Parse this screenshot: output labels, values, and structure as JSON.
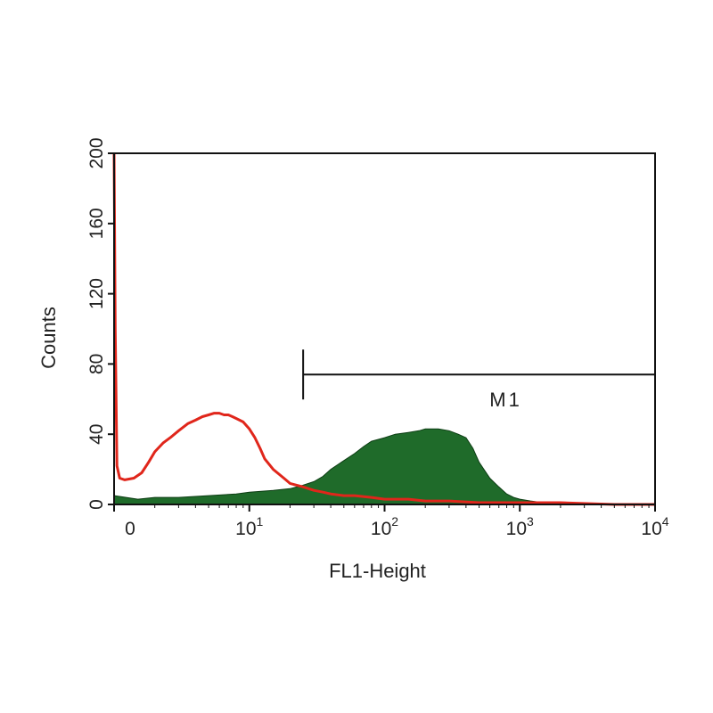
{
  "chart_data": {
    "type": "area",
    "xlabel": "FL1-Height",
    "ylabel": "Counts",
    "x_scale": "log",
    "xlim": [
      1,
      10000
    ],
    "ylim": [
      0,
      200
    ],
    "y_ticks": [
      "0",
      "40",
      "80",
      "120",
      "160",
      "200"
    ],
    "x_ticks": [
      {
        "base": "0",
        "exp": ""
      },
      {
        "base": "10",
        "exp": "1"
      },
      {
        "base": "10",
        "exp": "2"
      },
      {
        "base": "10",
        "exp": "3"
      },
      {
        "base": "10",
        "exp": "4"
      }
    ],
    "grid": false,
    "marker": {
      "label": "M1",
      "x_start": 25,
      "x_end": 10000,
      "y": 74
    },
    "series": [
      {
        "color": "#1f6b2a",
        "fill": true,
        "x": [
          1.0,
          1.5,
          2,
          3,
          5,
          8,
          10,
          15,
          20,
          25,
          30,
          35,
          40,
          50,
          60,
          70,
          80,
          100,
          120,
          150,
          180,
          200,
          250,
          300,
          350,
          400,
          450,
          500,
          600,
          700,
          800,
          900,
          1000,
          1200,
          1500,
          2000,
          3000,
          5000,
          10000
        ],
        "y": [
          5,
          3,
          4,
          4,
          5,
          6,
          7,
          8,
          9,
          11,
          13,
          16,
          20,
          25,
          29,
          33,
          36,
          38,
          40,
          41,
          42,
          43,
          43,
          42,
          40,
          38,
          32,
          24,
          15,
          10,
          6,
          4,
          3,
          2,
          1,
          1,
          0,
          0,
          0
        ]
      },
      {
        "color": "#e0261b",
        "fill": false,
        "x": [
          1.0,
          1.02,
          1.05,
          1.1,
          1.2,
          1.4,
          1.6,
          1.8,
          2.0,
          2.3,
          2.6,
          3,
          3.5,
          4,
          4.5,
          5,
          5.5,
          6,
          6.5,
          7,
          7.5,
          8,
          9,
          10,
          11,
          12,
          13,
          15,
          18,
          20,
          25,
          30,
          35,
          40,
          50,
          60,
          80,
          100,
          150,
          200,
          300,
          500,
          1000,
          2000,
          5000,
          10000
        ],
        "y": [
          200,
          100,
          22,
          15,
          14,
          15,
          18,
          24,
          30,
          35,
          38,
          42,
          46,
          48,
          50,
          51,
          52,
          52,
          51,
          51,
          50,
          49,
          47,
          43,
          38,
          32,
          26,
          20,
          15,
          12,
          10,
          8,
          7,
          6,
          5,
          5,
          4,
          3,
          3,
          2,
          2,
          1,
          1,
          1,
          0,
          0
        ]
      }
    ]
  }
}
